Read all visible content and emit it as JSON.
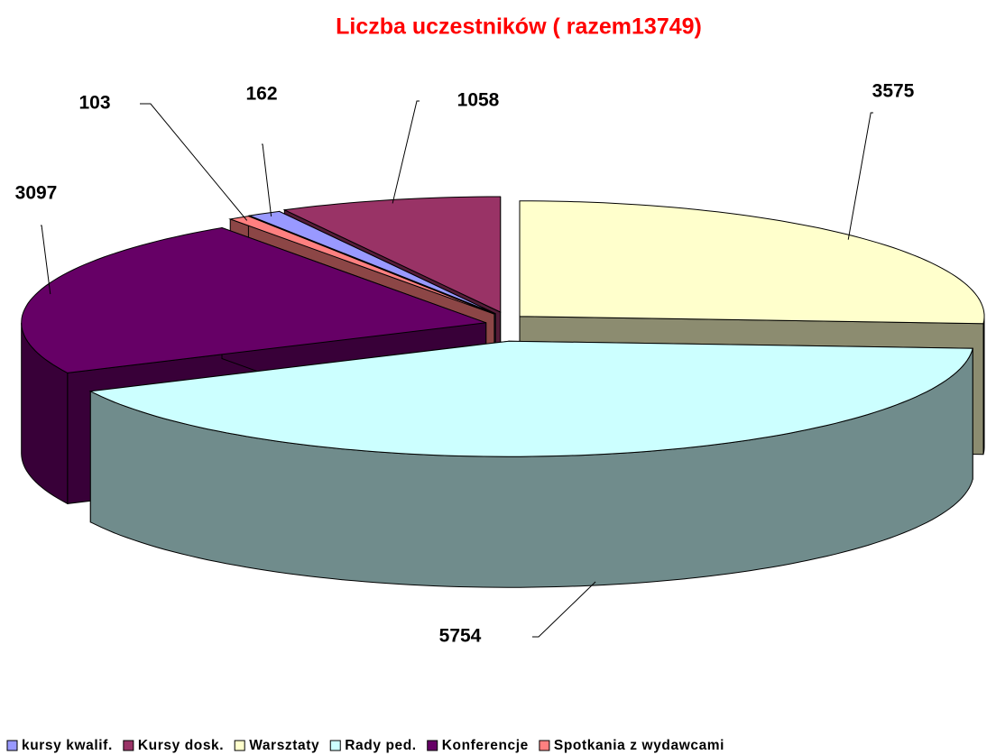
{
  "chart_data": {
    "type": "pie3d",
    "title": "Liczba uczestników ( razem13749)",
    "categories": [
      "kursy kwalif.",
      "Kursy dosk.",
      "Warsztaty",
      "Rady ped.",
      "Konferencje",
      "Spotkania z wydawcami"
    ],
    "values": [
      162,
      1058,
      3575,
      5754,
      3097,
      103
    ],
    "colors": [
      "#9999ff",
      "#993366",
      "#ffffcc",
      "#ccffff",
      "#660066",
      "#ff8080"
    ],
    "legend": "bottom"
  }
}
